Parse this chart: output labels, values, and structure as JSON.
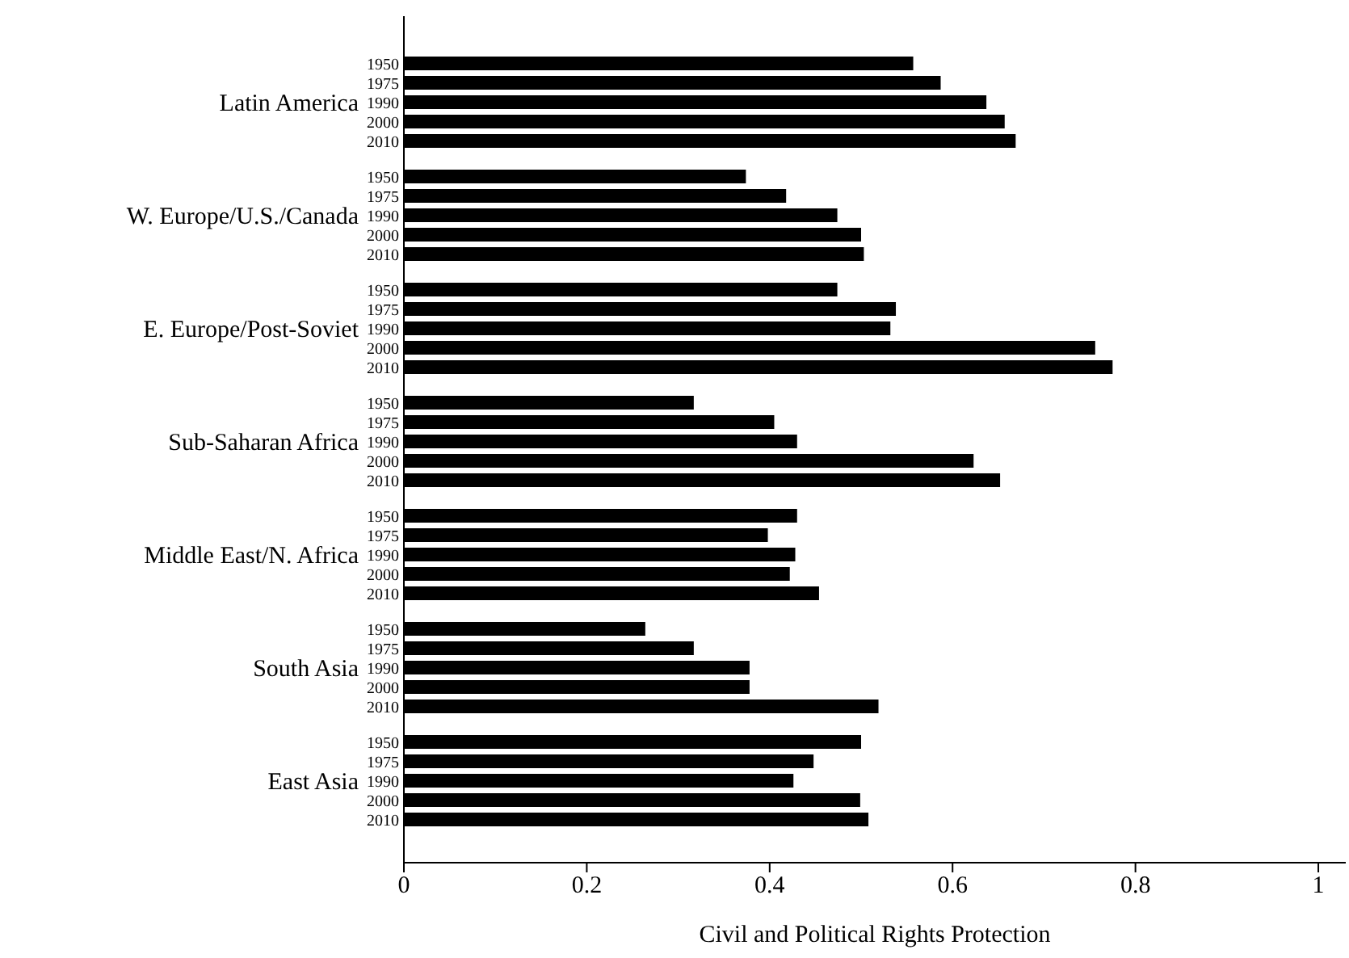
{
  "chart_data": {
    "type": "bar",
    "orientation": "horizontal",
    "xlabel": "Civil and Political Rights Protection",
    "categories": [
      "Latin America",
      "W. Europe/U.S./Canada",
      "E. Europe/Post-Soviet",
      "Sub-Saharan Africa",
      "Middle East/N. Africa",
      "South Asia",
      "East Asia"
    ],
    "series": [
      {
        "name": "1950",
        "color": "#000000",
        "values": [
          0.557,
          0.374,
          0.474,
          0.317,
          0.43,
          0.264,
          0.5
        ]
      },
      {
        "name": "1975",
        "color": "#000000",
        "values": [
          0.587,
          0.418,
          0.538,
          0.405,
          0.398,
          0.317,
          0.448
        ]
      },
      {
        "name": "1990",
        "color": "#000000",
        "values": [
          0.637,
          0.474,
          0.532,
          0.43,
          0.428,
          0.378,
          0.426
        ]
      },
      {
        "name": "2000",
        "color": "#000000",
        "values": [
          0.657,
          0.5,
          0.756,
          0.623,
          0.422,
          0.378,
          0.499
        ]
      },
      {
        "name": "2010",
        "color": "#000000",
        "values": [
          0.669,
          0.503,
          0.775,
          0.652,
          0.454,
          0.519,
          0.508
        ]
      }
    ],
    "xlim": [
      0,
      1.03
    ],
    "xticks": [
      0,
      0.2,
      0.4,
      0.6,
      0.8,
      1
    ],
    "grid": false,
    "legend": false
  }
}
